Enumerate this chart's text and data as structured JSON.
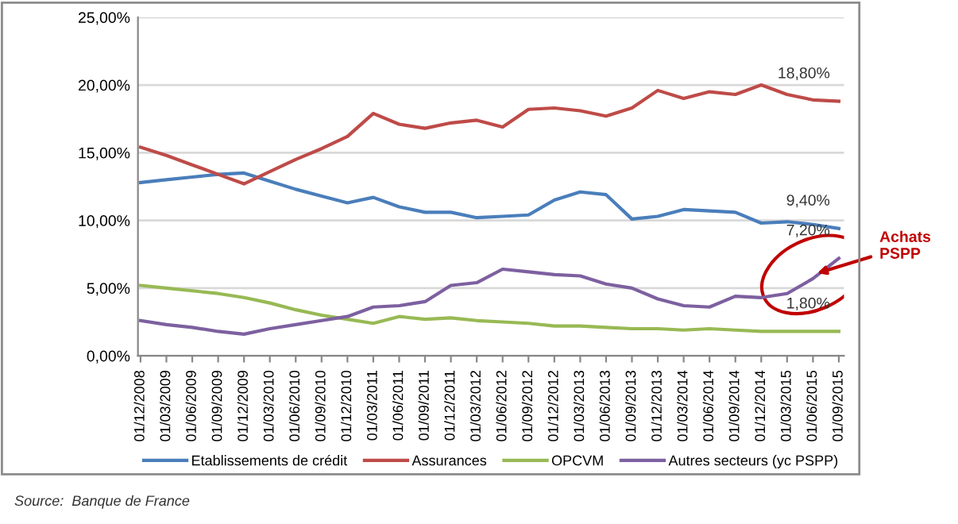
{
  "chart_data": {
    "type": "line",
    "categories": [
      "01/12/2008",
      "01/03/2009",
      "01/06/2009",
      "01/09/2009",
      "01/12/2009",
      "01/03/2010",
      "01/06/2010",
      "01/09/2010",
      "01/12/2010",
      "01/03/2011",
      "01/06/2011",
      "01/09/2011",
      "01/12/2011",
      "01/03/2012",
      "01/06/2012",
      "01/09/2012",
      "01/12/2012",
      "01/03/2013",
      "01/06/2013",
      "01/09/2013",
      "01/12/2013",
      "01/03/2014",
      "01/06/2014",
      "01/09/2014",
      "01/12/2014",
      "01/03/2015",
      "01/06/2015",
      "01/09/2015"
    ],
    "series": [
      {
        "name": "Etablissements de crédit",
        "color": "#4a7ebb",
        "values": [
          12.8,
          13.0,
          13.2,
          13.4,
          13.5,
          12.9,
          12.3,
          11.8,
          11.3,
          11.7,
          11.0,
          10.6,
          10.6,
          10.2,
          10.3,
          10.4,
          11.5,
          12.1,
          11.9,
          10.1,
          10.3,
          10.8,
          10.7,
          10.6,
          9.8,
          9.9,
          9.7,
          9.4
        ],
        "value_labels": [
          null,
          null,
          null,
          null,
          null,
          null,
          null,
          null,
          null,
          null,
          null,
          null,
          null,
          null,
          null,
          null,
          null,
          null,
          null,
          null,
          null,
          null,
          null,
          null,
          null,
          null,
          null,
          "9,40%"
        ]
      },
      {
        "name": "Assurances",
        "color": "#be4b48",
        "values": [
          15.4,
          14.8,
          14.1,
          13.4,
          12.7,
          13.6,
          14.5,
          15.3,
          16.2,
          17.9,
          17.1,
          16.8,
          17.2,
          17.4,
          16.9,
          18.2,
          18.3,
          18.1,
          17.7,
          18.3,
          19.6,
          19.0,
          19.5,
          19.3,
          20.0,
          19.3,
          18.9,
          18.8
        ],
        "value_labels": [
          null,
          null,
          null,
          null,
          null,
          null,
          null,
          null,
          null,
          null,
          null,
          null,
          null,
          null,
          null,
          null,
          null,
          null,
          null,
          null,
          null,
          null,
          null,
          null,
          null,
          null,
          null,
          "18,80%"
        ]
      },
      {
        "name": "OPCVM",
        "color": "#98b954",
        "values": [
          5.2,
          5.0,
          4.8,
          4.6,
          4.3,
          3.9,
          3.4,
          3.0,
          2.7,
          2.4,
          2.9,
          2.7,
          2.8,
          2.6,
          2.5,
          2.4,
          2.2,
          2.2,
          2.1,
          2.0,
          2.0,
          1.9,
          2.0,
          1.9,
          1.8,
          1.8,
          1.8,
          1.8
        ],
        "value_labels": [
          null,
          null,
          null,
          null,
          null,
          null,
          null,
          null,
          null,
          null,
          null,
          null,
          null,
          null,
          null,
          null,
          null,
          null,
          null,
          null,
          null,
          null,
          null,
          null,
          null,
          null,
          null,
          "1,80%"
        ]
      },
      {
        "name": "Autres secteurs (yc PSPP)",
        "color": "#7d60a0",
        "values": [
          2.6,
          2.3,
          2.1,
          1.8,
          1.6,
          2.0,
          2.3,
          2.6,
          2.9,
          3.6,
          3.7,
          4.0,
          5.2,
          5.4,
          6.4,
          6.2,
          6.0,
          5.9,
          5.3,
          5.0,
          4.2,
          3.7,
          3.6,
          4.4,
          4.3,
          4.6,
          5.7,
          7.2
        ],
        "value_labels": [
          null,
          null,
          null,
          null,
          null,
          null,
          null,
          null,
          null,
          null,
          null,
          null,
          null,
          null,
          null,
          null,
          null,
          null,
          null,
          null,
          null,
          null,
          null,
          null,
          null,
          null,
          null,
          "7,20%"
        ]
      }
    ],
    "ylim": [
      0,
      25
    ],
    "yticks": [
      {
        "value": 0,
        "label": "0,00%"
      },
      {
        "value": 5,
        "label": "5,00%"
      },
      {
        "value": 10,
        "label": "10,00%"
      },
      {
        "value": 15,
        "label": "15,00%"
      },
      {
        "value": 20,
        "label": "20,00%"
      },
      {
        "value": 25,
        "label": "25,00%"
      }
    ],
    "grid": "y",
    "legend": "bottom",
    "marker": "none",
    "line_style": "solid",
    "annotations": [
      {
        "text": "Achats\nPSPP",
        "x": "01/06/2015",
        "y": 6
      },
      "Source:  Banque de France"
    ]
  }
}
